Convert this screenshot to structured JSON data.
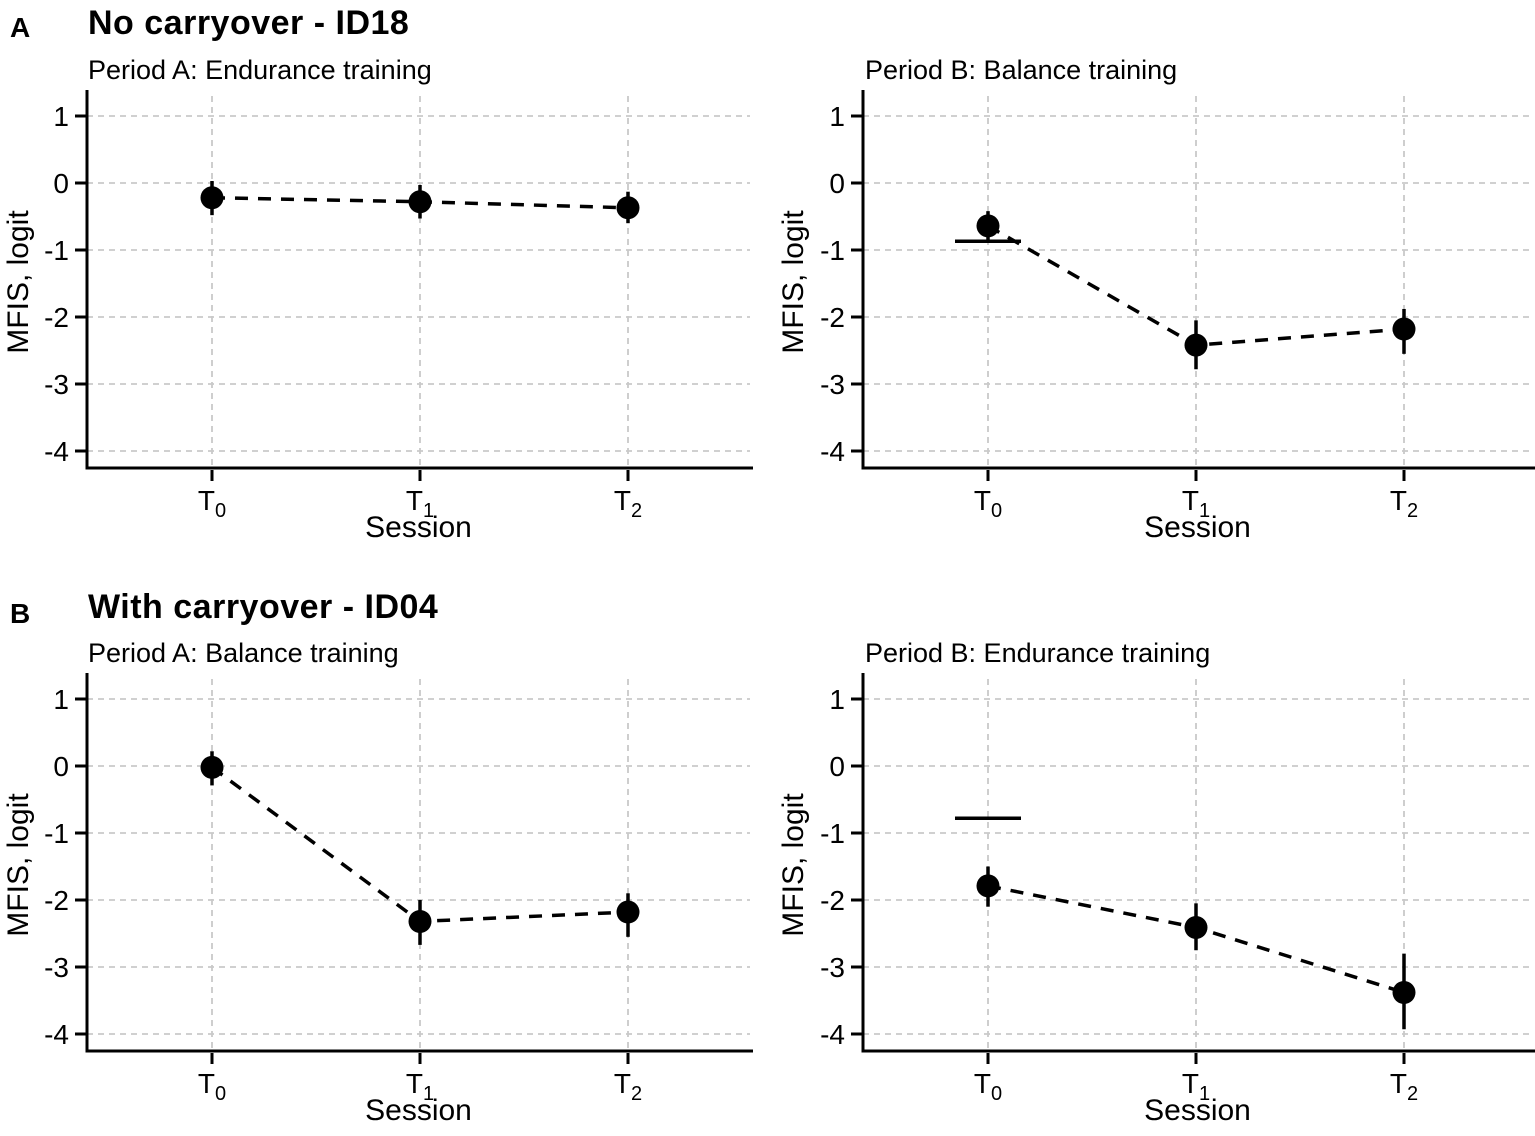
{
  "figure": {
    "background": "#ffffff",
    "ink_color": "#000000",
    "gridline_color": "#c9c9c9"
  },
  "panels": [
    {
      "letter": "A",
      "title": "No carryover - ID18"
    },
    {
      "letter": "B",
      "title": "With carryover - ID04"
    }
  ],
  "chart_data": [
    {
      "type": "line",
      "panel": "A",
      "slot": "left",
      "subtitle": "Period A: Endurance training",
      "xlabel": "Session",
      "ylabel": "MFIS, logit",
      "ylim": [
        -4.3,
        1.3
      ],
      "yticks": [
        1,
        0,
        -1,
        -2,
        -3,
        -4
      ],
      "grid": true,
      "line_style": "dashed",
      "categories": [
        {
          "base": "T",
          "sub": "0"
        },
        {
          "base": "T",
          "sub": "1"
        },
        {
          "base": "T",
          "sub": "2"
        }
      ],
      "points": [
        {
          "y": -0.22,
          "ci_low": -0.48,
          "ci_high": 0.03
        },
        {
          "y": -0.28,
          "ci_low": -0.53,
          "ci_high": -0.03
        },
        {
          "y": -0.37,
          "ci_low": -0.6,
          "ci_high": -0.13
        }
      ],
      "ref_line": null
    },
    {
      "type": "line",
      "panel": "A",
      "slot": "right",
      "subtitle": "Period B: Balance training",
      "xlabel": "Session",
      "ylabel": "MFIS, logit",
      "ylim": [
        -4.3,
        1.3
      ],
      "yticks": [
        1,
        0,
        -1,
        -2,
        -3,
        -4
      ],
      "grid": true,
      "line_style": "dashed",
      "categories": [
        {
          "base": "T",
          "sub": "0"
        },
        {
          "base": "T",
          "sub": "1"
        },
        {
          "base": "T",
          "sub": "2"
        }
      ],
      "points": [
        {
          "y": -0.64,
          "ci_low": -0.88,
          "ci_high": -0.42
        },
        {
          "y": -2.42,
          "ci_low": -2.78,
          "ci_high": -2.05
        },
        {
          "y": -2.18,
          "ci_low": -2.55,
          "ci_high": -1.88
        }
      ],
      "ref_line": {
        "x_index": 0,
        "y": -0.87
      }
    },
    {
      "type": "line",
      "panel": "B",
      "slot": "left",
      "subtitle": "Period A: Balance training",
      "xlabel": "Session",
      "ylabel": "MFIS, logit",
      "ylim": [
        -4.3,
        1.3
      ],
      "yticks": [
        1,
        0,
        -1,
        -2,
        -3,
        -4
      ],
      "grid": true,
      "line_style": "dashed",
      "categories": [
        {
          "base": "T",
          "sub": "0"
        },
        {
          "base": "T",
          "sub": "1"
        },
        {
          "base": "T",
          "sub": "2"
        }
      ],
      "points": [
        {
          "y": -0.02,
          "ci_low": -0.29,
          "ci_high": 0.22
        },
        {
          "y": -2.32,
          "ci_low": -2.67,
          "ci_high": -2.0
        },
        {
          "y": -2.18,
          "ci_low": -2.55,
          "ci_high": -1.9
        }
      ],
      "ref_line": null
    },
    {
      "type": "line",
      "panel": "B",
      "slot": "right",
      "subtitle": "Period B: Endurance training",
      "xlabel": "Session",
      "ylabel": "MFIS, logit",
      "ylim": [
        -4.3,
        1.3
      ],
      "yticks": [
        1,
        0,
        -1,
        -2,
        -3,
        -4
      ],
      "grid": true,
      "line_style": "dashed",
      "categories": [
        {
          "base": "T",
          "sub": "0"
        },
        {
          "base": "T",
          "sub": "1"
        },
        {
          "base": "T",
          "sub": "2"
        }
      ],
      "points": [
        {
          "y": -1.79,
          "ci_low": -2.1,
          "ci_high": -1.5
        },
        {
          "y": -2.41,
          "ci_low": -2.75,
          "ci_high": -2.05
        },
        {
          "y": -3.38,
          "ci_low": -3.93,
          "ci_high": -2.8
        }
      ],
      "ref_line": {
        "x_index": 0,
        "y": -0.78
      }
    }
  ]
}
